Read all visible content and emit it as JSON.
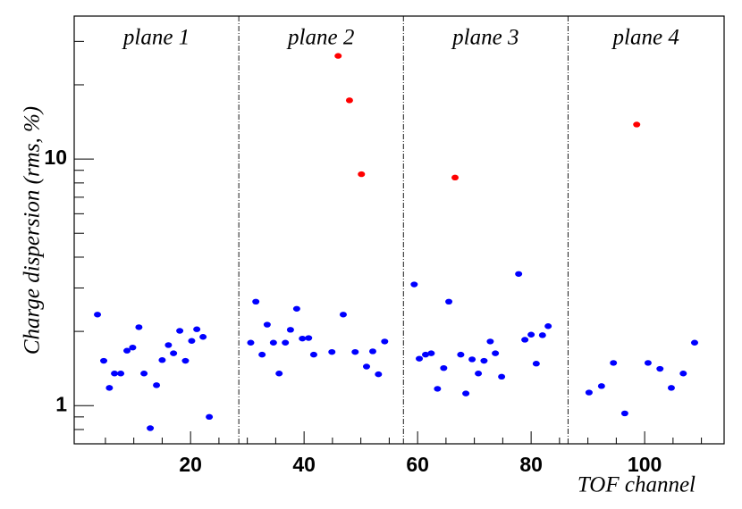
{
  "chart_data": {
    "type": "scatter",
    "y_label": "Charge dispersion (rms, %)",
    "x_label": "TOF channel",
    "annotations": [
      "plane 1",
      "plane 2",
      "plane 3",
      "plane 4"
    ],
    "dividers": [
      28.5,
      57.5,
      86.5
    ],
    "xlim": [
      -0.5,
      114
    ],
    "ylim": [
      0.7,
      38
    ],
    "log_y": true,
    "xticks": [
      20,
      40,
      60,
      80,
      100
    ],
    "xminorticks": [
      5,
      10,
      15,
      25,
      30,
      35,
      45,
      50,
      55,
      65,
      70,
      75,
      85,
      90,
      95,
      105,
      110
    ],
    "yticks": [
      1,
      10
    ],
    "yminorticks": [
      0.8,
      0.9,
      2,
      3,
      4,
      5,
      6,
      7,
      8,
      9,
      20,
      30
    ],
    "series": [
      {
        "color": "#0000ff",
        "x": [
          3.6,
          4.7,
          5.7,
          6.6,
          7.7,
          8.8,
          9.8,
          10.9,
          11.8,
          12.9,
          14.0,
          15.0,
          16.1,
          17.0,
          18.1,
          19.1,
          20.2,
          21.1,
          22.2,
          23.3,
          30.6,
          31.5,
          32.6,
          33.5,
          34.6,
          35.6,
          36.7,
          37.6,
          38.7,
          39.7,
          40.8,
          41.7,
          44.9,
          46.9,
          49.0,
          51.0,
          52.1,
          53.1,
          54.2,
          59.4,
          60.3,
          61.4,
          62.4,
          63.5,
          64.6,
          65.5,
          67.6,
          68.5,
          69.6,
          70.7,
          71.7,
          72.8,
          73.7,
          74.8,
          77.8,
          78.9,
          80.0,
          80.9,
          82.0,
          83.0,
          90.2,
          92.4,
          94.5,
          96.5,
          100.6,
          102.7,
          104.7,
          106.8,
          108.8
        ],
        "values": [
          2.34,
          1.52,
          1.18,
          1.35,
          1.35,
          1.67,
          1.72,
          2.08,
          1.35,
          0.81,
          1.21,
          1.53,
          1.76,
          1.63,
          2.01,
          1.52,
          1.83,
          2.04,
          1.9,
          0.9,
          1.8,
          2.64,
          1.61,
          2.13,
          1.8,
          1.35,
          1.8,
          2.03,
          2.47,
          1.87,
          1.88,
          1.61,
          1.65,
          2.34,
          1.65,
          1.44,
          1.66,
          1.34,
          1.82,
          3.1,
          1.55,
          1.61,
          1.63,
          1.17,
          1.42,
          2.64,
          1.61,
          1.12,
          1.54,
          1.35,
          1.52,
          1.82,
          1.63,
          1.31,
          3.42,
          1.85,
          1.94,
          1.48,
          1.93,
          2.1,
          1.13,
          1.2,
          1.49,
          0.93,
          1.49,
          1.41,
          1.18,
          1.35,
          1.8
        ]
      },
      {
        "color": "#ff0000",
        "x": [
          46.0,
          48.0,
          50.1,
          66.6,
          98.6
        ],
        "values": [
          26.2,
          17.3,
          8.68,
          8.41,
          13.8
        ]
      }
    ]
  }
}
